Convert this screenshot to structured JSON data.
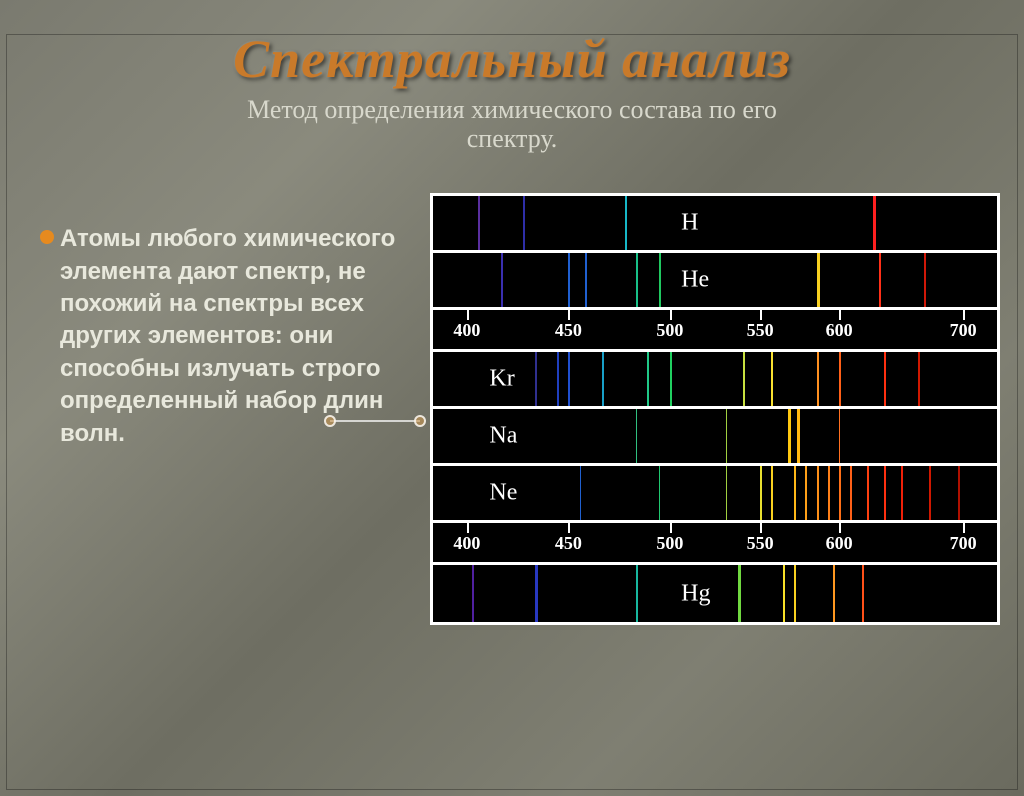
{
  "title": "Спектральный анализ",
  "subtitle_line1": "Метод определения химического состава по его",
  "subtitle_line2": "спектру.",
  "body_text": "Атомы любого химического элемента дают спектр, не похожий на спектры всех других элементов: они способны излучать строго определенный набор длин волн.",
  "title_color": "#c97a2a",
  "subtitle_color": "#d8d8cc",
  "body_color": "#e8e8dc",
  "bullet_color": "#e68a1f",
  "panel_bg": "#000000",
  "panel_border": "#ffffff",
  "axis_values": [
    400,
    450,
    500,
    550,
    600,
    700
  ],
  "axis_positions_pct": [
    6,
    24,
    42,
    58,
    72,
    94
  ],
  "spectra": [
    {
      "element": "H",
      "label_left_pct": 44,
      "lines": [
        {
          "pos": 8,
          "color": "#5a2fa0",
          "w": 2
        },
        {
          "pos": 16,
          "color": "#2e2ea8",
          "w": 2
        },
        {
          "pos": 34,
          "color": "#17b8c8",
          "w": 2
        },
        {
          "pos": 78,
          "color": "#ff2020",
          "w": 3
        }
      ]
    },
    {
      "element": "He",
      "label_left_pct": 44,
      "lines": [
        {
          "pos": 12,
          "color": "#3a2fb0",
          "w": 2
        },
        {
          "pos": 24,
          "color": "#2060d0",
          "w": 2
        },
        {
          "pos": 27,
          "color": "#2060d0",
          "w": 2
        },
        {
          "pos": 36,
          "color": "#18c088",
          "w": 2
        },
        {
          "pos": 40,
          "color": "#20c860",
          "w": 2
        },
        {
          "pos": 68,
          "color": "#f8d020",
          "w": 3
        },
        {
          "pos": 79,
          "color": "#ff3018",
          "w": 2
        },
        {
          "pos": 87,
          "color": "#d01808",
          "w": 2
        }
      ]
    },
    {
      "axis": true
    },
    {
      "element": "Kr",
      "label_left_pct": 10,
      "lines": [
        {
          "pos": 18,
          "color": "#303090",
          "w": 2
        },
        {
          "pos": 22,
          "color": "#2040c0",
          "w": 2
        },
        {
          "pos": 24,
          "color": "#2050d0",
          "w": 2
        },
        {
          "pos": 30,
          "color": "#18a0c8",
          "w": 2
        },
        {
          "pos": 38,
          "color": "#20c888",
          "w": 2
        },
        {
          "pos": 42,
          "color": "#20d060",
          "w": 2
        },
        {
          "pos": 55,
          "color": "#c8e040",
          "w": 2
        },
        {
          "pos": 60,
          "color": "#f8e030",
          "w": 2
        },
        {
          "pos": 68,
          "color": "#ff9020",
          "w": 2
        },
        {
          "pos": 72,
          "color": "#ff6018",
          "w": 2
        },
        {
          "pos": 80,
          "color": "#ff3010",
          "w": 2
        },
        {
          "pos": 86,
          "color": "#d01800",
          "w": 2
        }
      ]
    },
    {
      "element": "Na",
      "label_left_pct": 10,
      "lines": [
        {
          "pos": 36,
          "color": "#30c080",
          "w": 1
        },
        {
          "pos": 52,
          "color": "#a0d040",
          "w": 1
        },
        {
          "pos": 63,
          "color": "#ffc810",
          "w": 3
        },
        {
          "pos": 64.5,
          "color": "#ffb810",
          "w": 3
        },
        {
          "pos": 72,
          "color": "#ff7020",
          "w": 1
        }
      ]
    },
    {
      "element": "Ne",
      "label_left_pct": 10,
      "lines": [
        {
          "pos": 26,
          "color": "#2060d0",
          "w": 1
        },
        {
          "pos": 40,
          "color": "#20c870",
          "w": 1
        },
        {
          "pos": 52,
          "color": "#a0d040",
          "w": 1
        },
        {
          "pos": 58,
          "color": "#e8e030",
          "w": 2
        },
        {
          "pos": 60,
          "color": "#f8d020",
          "w": 2
        },
        {
          "pos": 64,
          "color": "#ffb818",
          "w": 2
        },
        {
          "pos": 66,
          "color": "#ffa018",
          "w": 2
        },
        {
          "pos": 68,
          "color": "#ff9018",
          "w": 2
        },
        {
          "pos": 70,
          "color": "#ff8018",
          "w": 2
        },
        {
          "pos": 72,
          "color": "#ff7018",
          "w": 2
        },
        {
          "pos": 74,
          "color": "#ff6018",
          "w": 2
        },
        {
          "pos": 77,
          "color": "#ff4010",
          "w": 2
        },
        {
          "pos": 80,
          "color": "#ff3010",
          "w": 2
        },
        {
          "pos": 83,
          "color": "#f02008",
          "w": 2
        },
        {
          "pos": 88,
          "color": "#d01800",
          "w": 2
        },
        {
          "pos": 93,
          "color": "#b01000",
          "w": 2
        }
      ]
    },
    {
      "axis": true
    },
    {
      "element": "Hg",
      "label_left_pct": 44,
      "lines": [
        {
          "pos": 7,
          "color": "#5020a0",
          "w": 2
        },
        {
          "pos": 18,
          "color": "#2838c0",
          "w": 3
        },
        {
          "pos": 36,
          "color": "#18b8a0",
          "w": 2
        },
        {
          "pos": 54,
          "color": "#70d840",
          "w": 3
        },
        {
          "pos": 62,
          "color": "#f8e028",
          "w": 2
        },
        {
          "pos": 64,
          "color": "#f8d020",
          "w": 2
        },
        {
          "pos": 71,
          "color": "#ff9820",
          "w": 2
        },
        {
          "pos": 76,
          "color": "#ff5018",
          "w": 2
        }
      ]
    }
  ]
}
